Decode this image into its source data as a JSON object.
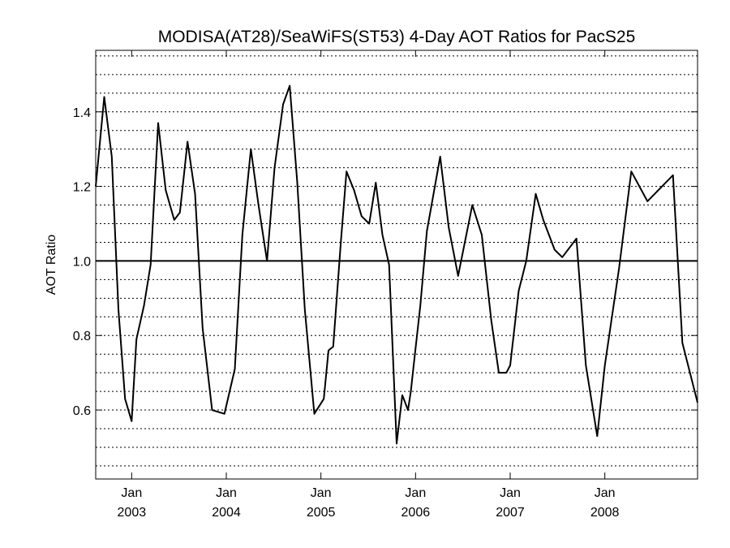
{
  "chart_data": {
    "type": "line",
    "title": "MODISA(AT28)/SeaWiFS(ST53) 4-Day AOT Ratios for PacS25",
    "xlabel": "",
    "ylabel": "AOT Ratio",
    "xlim": [
      2002.62,
      2008.98
    ],
    "ylim": [
      0.415,
      1.565
    ],
    "reference_line": 1.0,
    "grid": "horizontal dotted",
    "y_gridlines": [
      0.45,
      0.5,
      0.55,
      0.6,
      0.65,
      0.7,
      0.75,
      0.8,
      0.85,
      0.9,
      0.95,
      1.05,
      1.1,
      1.15,
      1.2,
      1.25,
      1.3,
      1.35,
      1.4,
      1.45,
      1.5,
      1.55
    ],
    "y_ticks": [
      {
        "value": 0.6,
        "label": "0.6"
      },
      {
        "value": 0.8,
        "label": "0.8"
      },
      {
        "value": 1.0,
        "label": "1.0"
      },
      {
        "value": 1.2,
        "label": "1.2"
      },
      {
        "value": 1.4,
        "label": "1.4"
      }
    ],
    "x_ticks": [
      {
        "value": 2003.0,
        "month": "Jan",
        "year": "2003"
      },
      {
        "value": 2004.0,
        "month": "Jan",
        "year": "2004"
      },
      {
        "value": 2005.0,
        "month": "Jan",
        "year": "2005"
      },
      {
        "value": 2006.0,
        "month": "Jan",
        "year": "2006"
      },
      {
        "value": 2007.0,
        "month": "Jan",
        "year": "2007"
      },
      {
        "value": 2008.0,
        "month": "Jan",
        "year": "2008"
      }
    ],
    "series": [
      {
        "color": "#000000",
        "x": [
          2002.62,
          2002.71,
          2002.79,
          2002.86,
          2002.93,
          2003.0,
          2003.05,
          2003.13,
          2003.2,
          2003.28,
          2003.36,
          2003.45,
          2003.51,
          2003.59,
          2003.67,
          2003.75,
          2003.85,
          2003.98,
          2004.09,
          2004.17,
          2004.26,
          2004.34,
          2004.43,
          2004.51,
          2004.6,
          2004.67,
          2004.75,
          2004.83,
          2004.93,
          2005.03,
          2005.08,
          2005.13,
          2005.21,
          2005.27,
          2005.35,
          2005.43,
          2005.51,
          2005.58,
          2005.65,
          2005.72,
          2005.8,
          2005.86,
          2005.92,
          2005.95,
          2005.98,
          2006.05,
          2006.12,
          2006.26,
          2006.35,
          2006.45,
          2006.6,
          2006.7,
          2006.8,
          2006.88,
          2006.96,
          2007.0,
          2007.09,
          2007.17,
          2007.27,
          2007.35,
          2007.47,
          2007.55,
          2007.7,
          2007.8,
          2007.92,
          2008.0,
          2008.15,
          2008.28,
          2008.45,
          2008.72,
          2008.82,
          2008.98
        ],
        "y": [
          1.2,
          1.44,
          1.28,
          0.87,
          0.63,
          0.57,
          0.79,
          0.88,
          0.99,
          1.37,
          1.19,
          1.11,
          1.13,
          1.32,
          1.18,
          0.82,
          0.6,
          0.59,
          0.71,
          1.07,
          1.3,
          1.15,
          1.0,
          1.25,
          1.42,
          1.47,
          1.21,
          0.87,
          0.59,
          0.63,
          0.76,
          0.77,
          1.05,
          1.24,
          1.19,
          1.12,
          1.1,
          1.21,
          1.07,
          0.99,
          0.51,
          0.64,
          0.6,
          0.65,
          0.72,
          0.88,
          1.08,
          1.28,
          1.09,
          0.96,
          1.15,
          1.07,
          0.84,
          0.7,
          0.7,
          0.72,
          0.92,
          1.0,
          1.18,
          1.11,
          1.03,
          1.01,
          1.06,
          0.72,
          0.53,
          0.72,
          0.98,
          1.24,
          1.16,
          1.23,
          0.78,
          0.62
        ]
      }
    ]
  }
}
